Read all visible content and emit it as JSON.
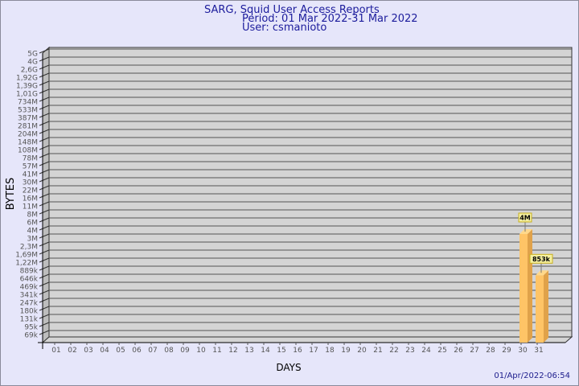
{
  "header": {
    "title": "SARG, Squid User Access Reports",
    "period": "Period: 01 Mar 2022-31 Mar 2022",
    "user": "User: csmanioto"
  },
  "timestamp": "01/Apr/2022-06:54",
  "colors": {
    "background": "#e6e6fa",
    "plot": "#d4d4d4",
    "bar": "#ffc466",
    "bar_side": "#e0a24a",
    "label_box": "#f5f0a0",
    "title": "#1c1c9c"
  },
  "chart_data": {
    "type": "bar",
    "title": "SARG, Squid User Access Reports",
    "xlabel": "DAYS",
    "ylabel": "BYTES",
    "y_scale": "log-like (labeled ticks)",
    "y_ticks": [
      "5G",
      "4G",
      "2,6G",
      "1,92G",
      "1,39G",
      "1,01G",
      "734M",
      "533M",
      "387M",
      "281M",
      "204M",
      "148M",
      "108M",
      "78M",
      "57M",
      "41M",
      "30M",
      "22M",
      "16M",
      "11M",
      "8M",
      "6M",
      "4M",
      "3M",
      "2,3M",
      "1,69M",
      "1,22M",
      "889k",
      "646k",
      "469k",
      "341k",
      "247k",
      "180k",
      "131k",
      "95k",
      "69k"
    ],
    "y_tick_values": [
      5000000000,
      4000000000,
      2600000000,
      1920000000,
      1390000000,
      1010000000,
      734000000,
      533000000,
      387000000,
      281000000,
      204000000,
      148000000,
      108000000,
      78000000,
      57000000,
      41000000,
      30000000,
      22000000,
      16000000,
      11000000,
      8000000,
      6000000,
      4000000,
      3000000,
      2300000,
      1690000,
      1220000,
      889000,
      646000,
      469000,
      341000,
      247000,
      180000,
      131000,
      95000,
      69000
    ],
    "categories": [
      "01",
      "02",
      "03",
      "04",
      "05",
      "06",
      "07",
      "08",
      "09",
      "10",
      "11",
      "12",
      "13",
      "14",
      "15",
      "16",
      "17",
      "18",
      "19",
      "20",
      "21",
      "22",
      "23",
      "24",
      "25",
      "26",
      "27",
      "28",
      "29",
      "30",
      "31"
    ],
    "values": [
      0,
      0,
      0,
      0,
      0,
      0,
      0,
      0,
      0,
      0,
      0,
      0,
      0,
      0,
      0,
      0,
      0,
      0,
      0,
      0,
      0,
      0,
      0,
      0,
      0,
      0,
      0,
      0,
      0,
      4000000,
      853000
    ],
    "data_labels": {
      "30": "4M",
      "31": "853k"
    },
    "grid": true
  }
}
